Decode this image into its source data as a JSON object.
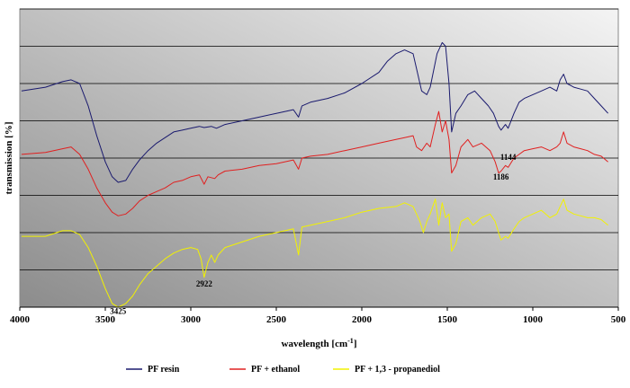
{
  "chart_data": {
    "type": "line",
    "title": "",
    "xlabel": "wavelength [cm",
    "xlabel_sup": "-1",
    "xlabel_end": "]",
    "ylabel": "transmission [%]",
    "xlim": [
      4000,
      500
    ],
    "x_reversed": true,
    "ylim": [
      0,
      8
    ],
    "x_ticks": [
      {
        "value": 4000,
        "label": "4000"
      },
      {
        "value": 3500,
        "label": "3500"
      },
      {
        "value": 3000,
        "label": "3000"
      },
      {
        "value": 2500,
        "label": "2500"
      },
      {
        "value": 2000,
        "label": "2000"
      },
      {
        "value": 1500,
        "label": "1500"
      },
      {
        "value": 1000,
        "label": "1000"
      },
      {
        "value": 500,
        "label": "500"
      }
    ],
    "y_gridlines": [
      1,
      2,
      3,
      4,
      5,
      6,
      7,
      8
    ],
    "grid": true,
    "plot_background": "gradient grey (light top-right to dark bottom-left)",
    "legend_position": "bottom",
    "series": [
      {
        "name": "PF resin",
        "color": "#1a1a6e",
        "points": [
          [
            3990,
            5.8
          ],
          [
            3850,
            5.9
          ],
          [
            3750,
            6.05
          ],
          [
            3700,
            6.1
          ],
          [
            3650,
            6.0
          ],
          [
            3600,
            5.4
          ],
          [
            3550,
            4.6
          ],
          [
            3500,
            3.9
          ],
          [
            3460,
            3.5
          ],
          [
            3425,
            3.35
          ],
          [
            3380,
            3.4
          ],
          [
            3340,
            3.7
          ],
          [
            3300,
            3.95
          ],
          [
            3250,
            4.2
          ],
          [
            3200,
            4.4
          ],
          [
            3150,
            4.55
          ],
          [
            3100,
            4.7
          ],
          [
            3050,
            4.75
          ],
          [
            3000,
            4.8
          ],
          [
            2950,
            4.85
          ],
          [
            2922,
            4.82
          ],
          [
            2880,
            4.85
          ],
          [
            2850,
            4.8
          ],
          [
            2800,
            4.9
          ],
          [
            2700,
            5.0
          ],
          [
            2600,
            5.1
          ],
          [
            2500,
            5.2
          ],
          [
            2400,
            5.3
          ],
          [
            2370,
            5.1
          ],
          [
            2350,
            5.4
          ],
          [
            2300,
            5.5
          ],
          [
            2200,
            5.6
          ],
          [
            2100,
            5.75
          ],
          [
            2000,
            6.0
          ],
          [
            1900,
            6.3
          ],
          [
            1850,
            6.6
          ],
          [
            1800,
            6.8
          ],
          [
            1750,
            6.9
          ],
          [
            1700,
            6.8
          ],
          [
            1680,
            6.4
          ],
          [
            1650,
            5.8
          ],
          [
            1620,
            5.7
          ],
          [
            1600,
            5.9
          ],
          [
            1560,
            6.8
          ],
          [
            1530,
            7.1
          ],
          [
            1510,
            7.0
          ],
          [
            1490,
            6.0
          ],
          [
            1475,
            4.7
          ],
          [
            1450,
            5.2
          ],
          [
            1420,
            5.4
          ],
          [
            1380,
            5.7
          ],
          [
            1340,
            5.8
          ],
          [
            1300,
            5.6
          ],
          [
            1260,
            5.4
          ],
          [
            1230,
            5.2
          ],
          [
            1200,
            4.85
          ],
          [
            1186,
            4.75
          ],
          [
            1160,
            4.9
          ],
          [
            1144,
            4.8
          ],
          [
            1110,
            5.2
          ],
          [
            1080,
            5.5
          ],
          [
            1050,
            5.6
          ],
          [
            1000,
            5.7
          ],
          [
            950,
            5.8
          ],
          [
            900,
            5.9
          ],
          [
            860,
            5.8
          ],
          [
            840,
            6.1
          ],
          [
            820,
            6.25
          ],
          [
            800,
            6.0
          ],
          [
            760,
            5.9
          ],
          [
            720,
            5.85
          ],
          [
            680,
            5.8
          ],
          [
            640,
            5.6
          ],
          [
            600,
            5.4
          ],
          [
            560,
            5.2
          ]
        ]
      },
      {
        "name": "PF + ethanol",
        "color": "#e02020",
        "points": [
          [
            3990,
            4.1
          ],
          [
            3850,
            4.15
          ],
          [
            3750,
            4.25
          ],
          [
            3700,
            4.3
          ],
          [
            3650,
            4.1
          ],
          [
            3600,
            3.7
          ],
          [
            3550,
            3.2
          ],
          [
            3500,
            2.8
          ],
          [
            3460,
            2.55
          ],
          [
            3425,
            2.45
          ],
          [
            3380,
            2.5
          ],
          [
            3340,
            2.65
          ],
          [
            3300,
            2.85
          ],
          [
            3250,
            3.0
          ],
          [
            3200,
            3.1
          ],
          [
            3150,
            3.2
          ],
          [
            3100,
            3.35
          ],
          [
            3050,
            3.4
          ],
          [
            3000,
            3.5
          ],
          [
            2950,
            3.55
          ],
          [
            2922,
            3.3
          ],
          [
            2900,
            3.5
          ],
          [
            2860,
            3.45
          ],
          [
            2840,
            3.55
          ],
          [
            2800,
            3.65
          ],
          [
            2700,
            3.7
          ],
          [
            2600,
            3.8
          ],
          [
            2500,
            3.85
          ],
          [
            2400,
            3.95
          ],
          [
            2370,
            3.7
          ],
          [
            2350,
            4.0
          ],
          [
            2300,
            4.05
          ],
          [
            2200,
            4.1
          ],
          [
            2100,
            4.2
          ],
          [
            2000,
            4.3
          ],
          [
            1900,
            4.4
          ],
          [
            1800,
            4.5
          ],
          [
            1750,
            4.55
          ],
          [
            1700,
            4.6
          ],
          [
            1680,
            4.3
          ],
          [
            1650,
            4.2
          ],
          [
            1620,
            4.4
          ],
          [
            1600,
            4.3
          ],
          [
            1570,
            4.9
          ],
          [
            1550,
            5.25
          ],
          [
            1530,
            4.7
          ],
          [
            1510,
            5.0
          ],
          [
            1490,
            4.5
          ],
          [
            1475,
            3.6
          ],
          [
            1450,
            3.8
          ],
          [
            1420,
            4.3
          ],
          [
            1380,
            4.5
          ],
          [
            1350,
            4.3
          ],
          [
            1300,
            4.4
          ],
          [
            1250,
            4.2
          ],
          [
            1220,
            3.9
          ],
          [
            1200,
            3.6
          ],
          [
            1186,
            3.65
          ],
          [
            1160,
            3.8
          ],
          [
            1144,
            3.75
          ],
          [
            1110,
            4.0
          ],
          [
            1080,
            4.1
          ],
          [
            1050,
            4.2
          ],
          [
            1000,
            4.25
          ],
          [
            950,
            4.3
          ],
          [
            900,
            4.2
          ],
          [
            860,
            4.3
          ],
          [
            840,
            4.4
          ],
          [
            820,
            4.7
          ],
          [
            800,
            4.4
          ],
          [
            760,
            4.3
          ],
          [
            720,
            4.25
          ],
          [
            680,
            4.2
          ],
          [
            640,
            4.1
          ],
          [
            600,
            4.05
          ],
          [
            560,
            3.9
          ]
        ]
      },
      {
        "name": "PF + 1,3 - propanediol",
        "color": "#f2f200",
        "points": [
          [
            3990,
            1.9
          ],
          [
            3850,
            1.9
          ],
          [
            3750,
            2.05
          ],
          [
            3700,
            2.05
          ],
          [
            3650,
            1.95
          ],
          [
            3600,
            1.6
          ],
          [
            3550,
            1.1
          ],
          [
            3500,
            0.5
          ],
          [
            3460,
            0.1
          ],
          [
            3425,
            0.0
          ],
          [
            3380,
            0.1
          ],
          [
            3340,
            0.3
          ],
          [
            3300,
            0.6
          ],
          [
            3250,
            0.9
          ],
          [
            3200,
            1.1
          ],
          [
            3150,
            1.3
          ],
          [
            3100,
            1.45
          ],
          [
            3050,
            1.55
          ],
          [
            3000,
            1.6
          ],
          [
            2960,
            1.55
          ],
          [
            2940,
            1.3
          ],
          [
            2922,
            0.8
          ],
          [
            2900,
            1.2
          ],
          [
            2880,
            1.4
          ],
          [
            2860,
            1.2
          ],
          [
            2840,
            1.4
          ],
          [
            2800,
            1.6
          ],
          [
            2700,
            1.75
          ],
          [
            2600,
            1.9
          ],
          [
            2500,
            2.0
          ],
          [
            2400,
            2.1
          ],
          [
            2370,
            1.4
          ],
          [
            2350,
            2.15
          ],
          [
            2300,
            2.2
          ],
          [
            2200,
            2.3
          ],
          [
            2100,
            2.4
          ],
          [
            2000,
            2.55
          ],
          [
            1900,
            2.65
          ],
          [
            1800,
            2.7
          ],
          [
            1750,
            2.8
          ],
          [
            1700,
            2.7
          ],
          [
            1660,
            2.3
          ],
          [
            1640,
            2.0
          ],
          [
            1620,
            2.3
          ],
          [
            1600,
            2.5
          ],
          [
            1570,
            2.9
          ],
          [
            1550,
            2.2
          ],
          [
            1530,
            2.8
          ],
          [
            1510,
            2.4
          ],
          [
            1490,
            2.5
          ],
          [
            1475,
            1.5
          ],
          [
            1450,
            1.7
          ],
          [
            1420,
            2.3
          ],
          [
            1380,
            2.4
          ],
          [
            1350,
            2.2
          ],
          [
            1300,
            2.4
          ],
          [
            1250,
            2.5
          ],
          [
            1220,
            2.3
          ],
          [
            1200,
            2.0
          ],
          [
            1186,
            1.8
          ],
          [
            1160,
            1.9
          ],
          [
            1144,
            1.85
          ],
          [
            1110,
            2.1
          ],
          [
            1080,
            2.3
          ],
          [
            1050,
            2.4
          ],
          [
            1000,
            2.5
          ],
          [
            950,
            2.6
          ],
          [
            900,
            2.4
          ],
          [
            860,
            2.5
          ],
          [
            840,
            2.7
          ],
          [
            820,
            2.9
          ],
          [
            800,
            2.6
          ],
          [
            760,
            2.5
          ],
          [
            720,
            2.45
          ],
          [
            680,
            2.4
          ],
          [
            640,
            2.4
          ],
          [
            600,
            2.35
          ],
          [
            560,
            2.2
          ]
        ]
      }
    ],
    "annotations": [
      {
        "text": "3425",
        "x": 3425,
        "y": -0.18
      },
      {
        "text": "2922",
        "x": 2922,
        "y": 0.55
      },
      {
        "text": "1186",
        "x": 1186,
        "y": 3.42
      },
      {
        "text": "1144",
        "x": 1144,
        "y": 3.95
      }
    ]
  }
}
